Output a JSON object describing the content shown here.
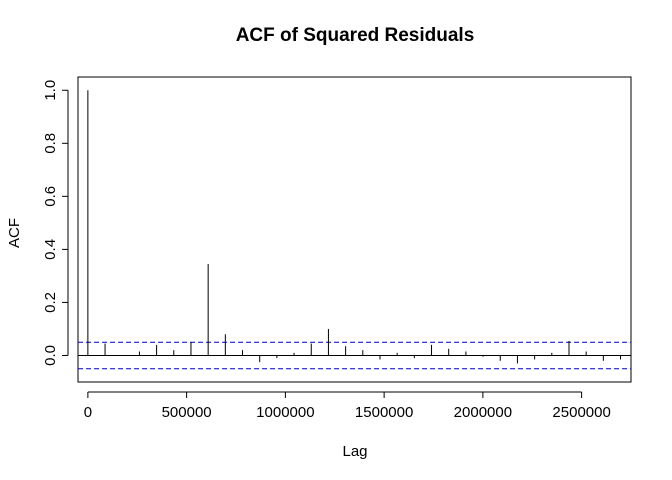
{
  "chart_data": {
    "type": "bar",
    "subtype": "acf-stem",
    "title": "ACF of Squared Residuals",
    "xlabel": "Lag",
    "ylabel": "ACF",
    "xlim": [
      -50000,
      2750000
    ],
    "ylim": [
      -0.1,
      1.05
    ],
    "x_ticks": [
      0,
      500000,
      1000000,
      1500000,
      2000000,
      2500000
    ],
    "x_tick_labels": [
      "0",
      "500000",
      "1000000",
      "1500000",
      "2000000",
      "2500000"
    ],
    "y_ticks": [
      0.0,
      0.2,
      0.4,
      0.6,
      0.8,
      1.0
    ],
    "y_tick_labels": [
      "0.0",
      "0.2",
      "0.4",
      "0.6",
      "0.8",
      "1.0"
    ],
    "confidence_bounds": [
      0.05,
      -0.05
    ],
    "grid": false,
    "x": [
      0,
      87000,
      174000,
      261000,
      348000,
      435000,
      522000,
      609000,
      696000,
      783000,
      870000,
      957000,
      1044000,
      1131000,
      1218000,
      1305000,
      1392000,
      1479000,
      1566000,
      1653000,
      1740000,
      1827000,
      1914000,
      2001000,
      2088000,
      2175000,
      2262000,
      2349000,
      2436000,
      2523000,
      2610000,
      2697000
    ],
    "values": [
      1.0,
      0.045,
      0.0,
      0.015,
      0.04,
      0.02,
      0.05,
      0.345,
      0.08,
      0.02,
      -0.025,
      -0.01,
      0.01,
      0.045,
      0.1,
      0.035,
      0.02,
      -0.015,
      0.01,
      -0.01,
      0.04,
      0.025,
      0.015,
      -0.005,
      -0.02,
      -0.03,
      -0.015,
      0.01,
      0.055,
      0.015,
      -0.02,
      -0.015
    ]
  }
}
